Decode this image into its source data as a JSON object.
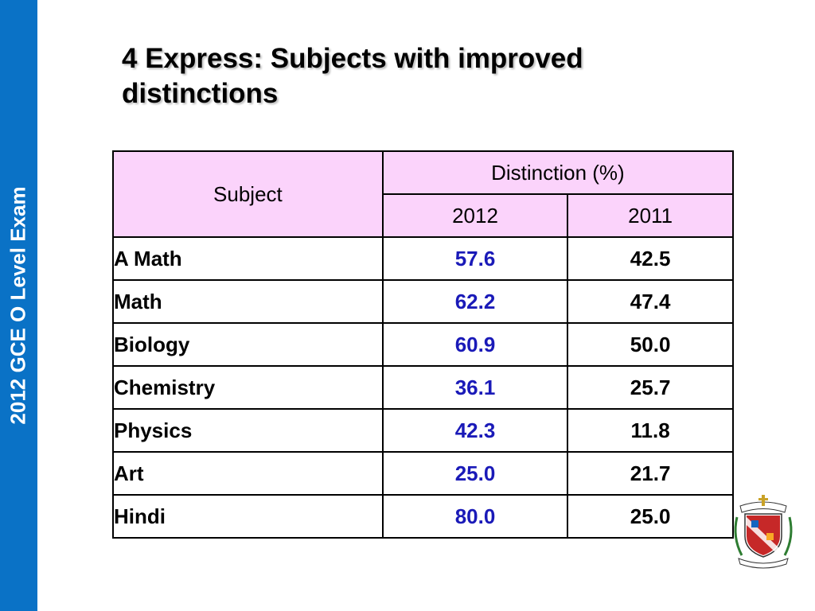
{
  "sidebar": {
    "label": "2012 GCE O Level Exam",
    "color": "#0a72c6"
  },
  "title": "4 Express: Subjects with improved distinctions",
  "table": {
    "header": {
      "subject": "Subject",
      "group": "Distinction (%)",
      "year1": "2012",
      "year2": "2011"
    },
    "header_color": "#fbd3fb",
    "highlight_color": "#1a1ab8",
    "rows": [
      {
        "subject": "A Math",
        "y2012": "57.6",
        "y2011": "42.5"
      },
      {
        "subject": "Math",
        "y2012": "62.2",
        "y2011": "47.4"
      },
      {
        "subject": "Biology",
        "y2012": "60.9",
        "y2011": "50.0"
      },
      {
        "subject": "Chemistry",
        "y2012": "36.1",
        "y2011": "25.7"
      },
      {
        "subject": "Physics",
        "y2012": "42.3",
        "y2011": "11.8"
      },
      {
        "subject": "Art",
        "y2012": "25.0",
        "y2011": "21.7"
      },
      {
        "subject": "Hindi",
        "y2012": "80.0",
        "y2011": "25.0"
      }
    ]
  },
  "crest": {
    "icon": "school-crest-icon"
  }
}
